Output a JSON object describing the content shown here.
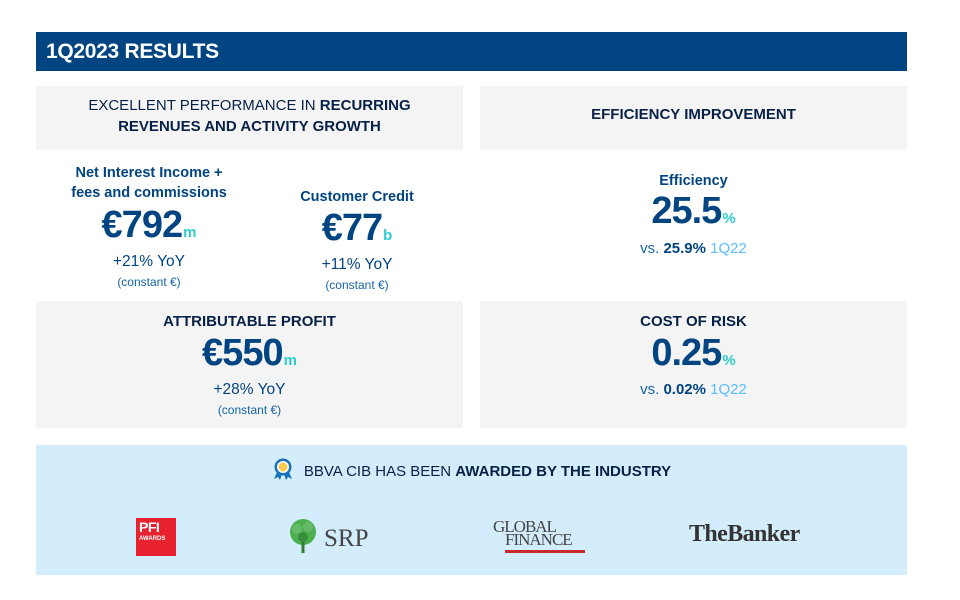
{
  "header": {
    "title": "1Q2023 RESULTS"
  },
  "left_panel": {
    "headline_normal": "EXCELLENT PERFORMANCE IN ",
    "headline_bold_1": "RECURRING",
    "headline_bold_2": "REVENUES AND ACTIVITY GROWTH"
  },
  "right_panel": {
    "headline": "EFFICIENCY IMPROVEMENT"
  },
  "kpis": {
    "nii": {
      "label_1": "Net Interest Income +",
      "label_2": "fees and commissions",
      "value": "€792",
      "unit": "m",
      "yoy": "+21% YoY",
      "note": "(constant €)"
    },
    "credit": {
      "label": "Customer Credit",
      "value": "€77",
      "unit": "b",
      "yoy": "+11% YoY",
      "note": "(constant €)"
    },
    "efficiency": {
      "label": "Efficiency",
      "value": "25.5",
      "unit": "%",
      "vs_prefix": "vs. ",
      "vs_value": "25.9%",
      "vs_period": " 1Q22"
    },
    "profit": {
      "label": "ATTRIBUTABLE PROFIT",
      "value": "€550",
      "unit": "m",
      "yoy": "+28% YoY",
      "note": "(constant €)"
    },
    "cost_of_risk": {
      "label": "COST OF RISK",
      "value": "0.25",
      "unit": "%",
      "vs_prefix": "vs. ",
      "vs_value": "0.02%",
      "vs_period": " 1Q22"
    }
  },
  "awards": {
    "headline_normal": "BBVA CIB HAS BEEN ",
    "headline_bold": "AWARDED BY THE INDUSTRY",
    "logos": {
      "pfi_1": "PFI",
      "pfi_2": "AWARDS",
      "srp": "SRP",
      "gf_1": "GLOBAL",
      "gf_2": "FINANCE",
      "banker": "TheBanker"
    }
  },
  "colors": {
    "header_bg": "#004481",
    "kpi_blue": "#004481",
    "accent_aqua": "#2dcccd",
    "panel_grey": "#f4f4f4",
    "awards_bg": "#d4edfc"
  },
  "icons": {
    "award": "award-medal-icon"
  }
}
